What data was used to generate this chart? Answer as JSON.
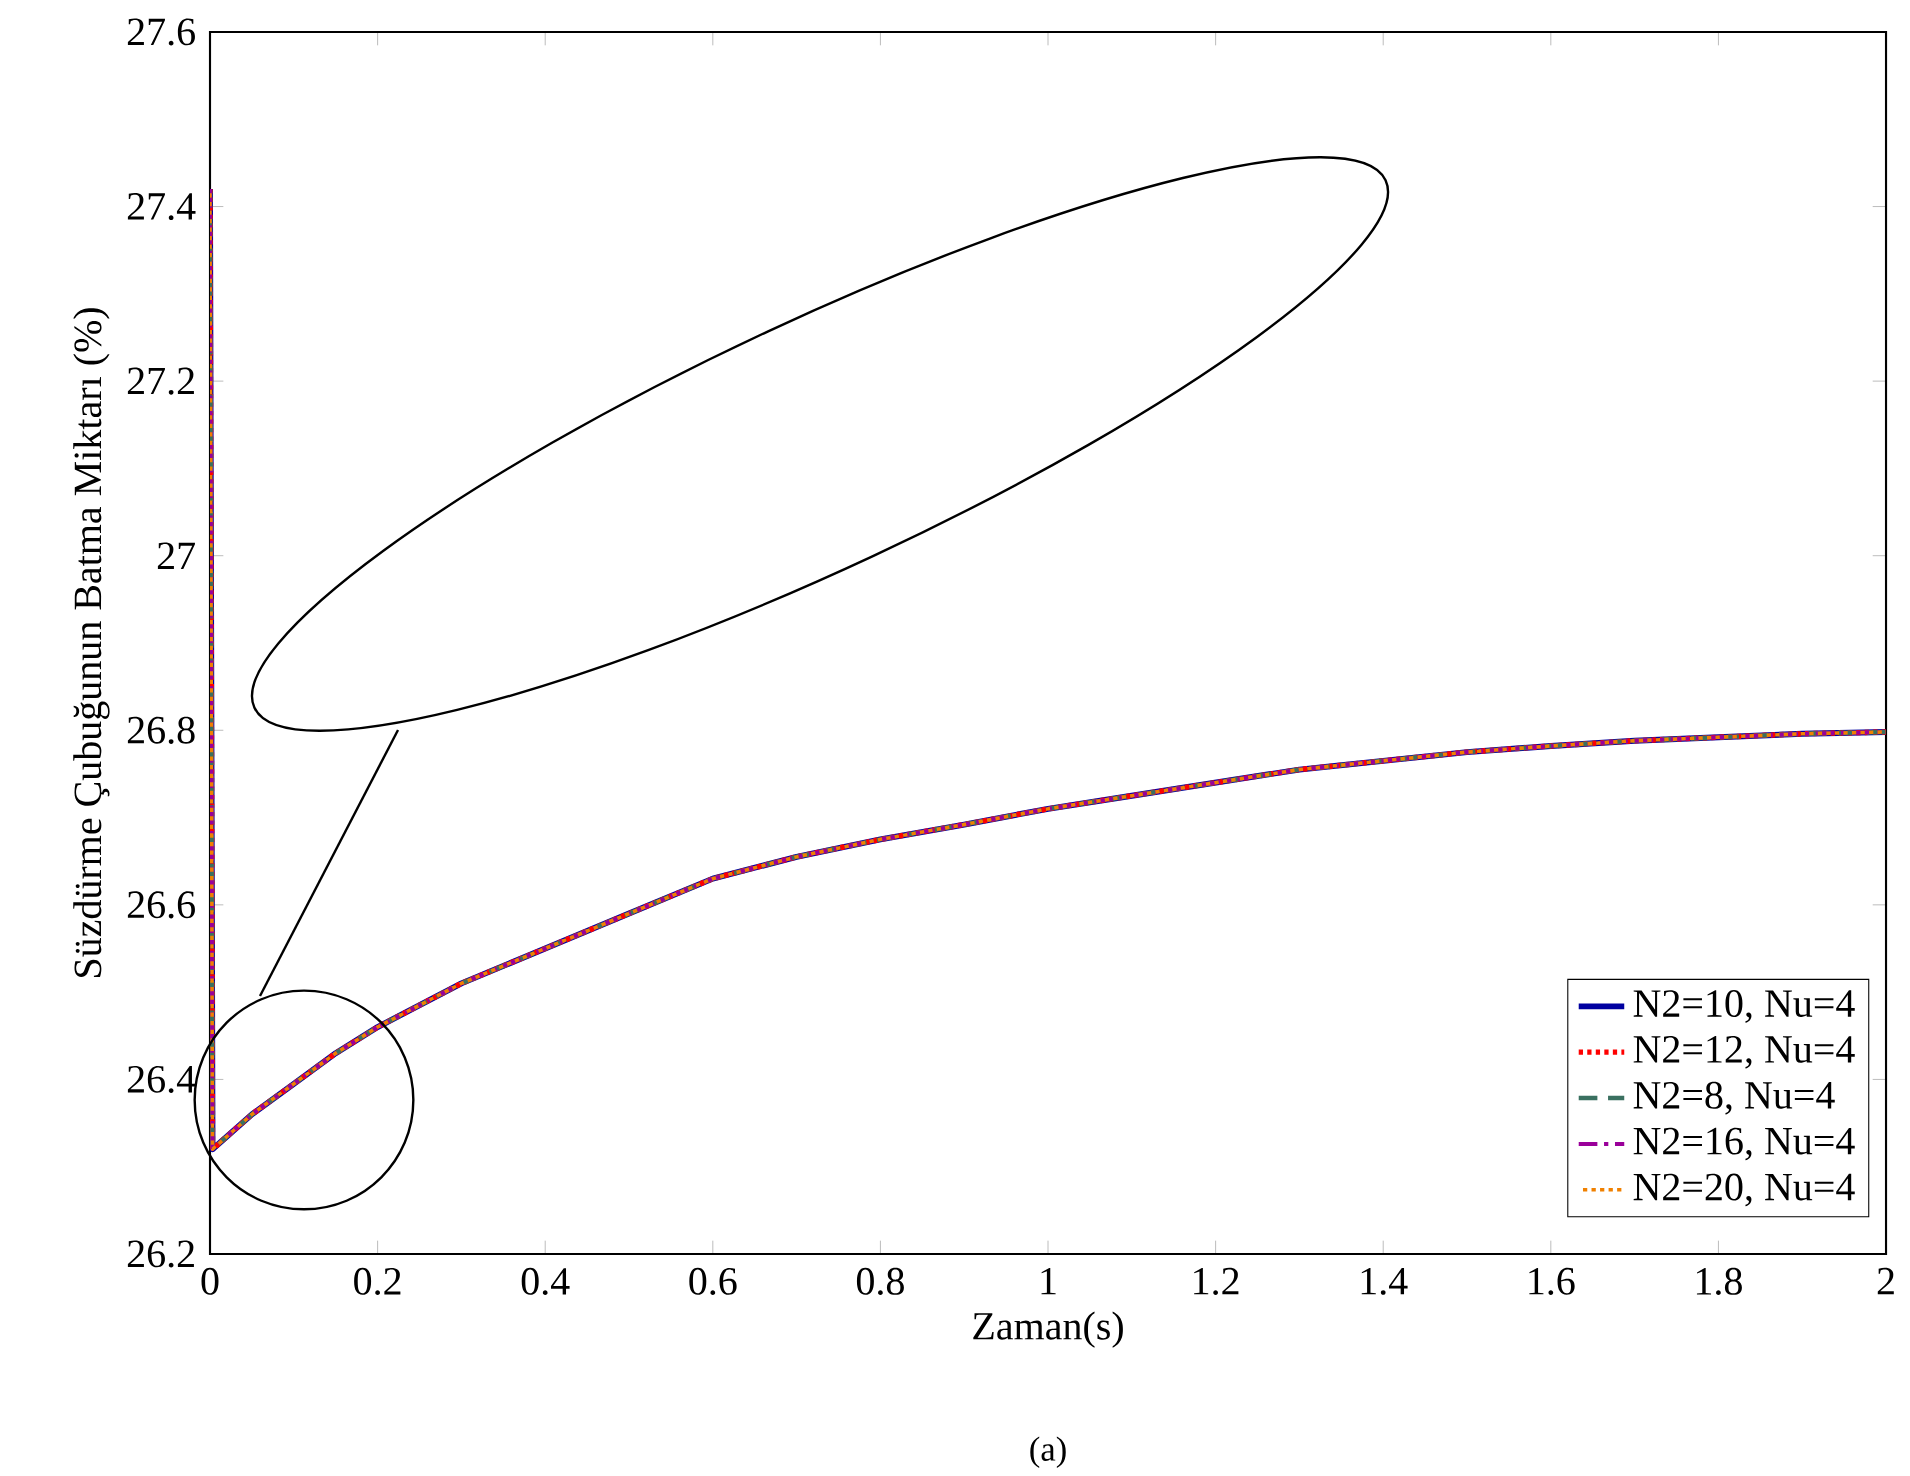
{
  "chart_data": {
    "type": "line",
    "xlabel": "Zaman(s)",
    "ylabel": "Süzdürme Çubuğunun Batma Miktarı (%)",
    "annotations": [
      "(a)"
    ],
    "x": [
      0,
      0.003,
      0.05,
      0.1,
      0.15,
      0.2,
      0.3,
      0.4,
      0.5,
      0.6,
      0.7,
      0.8,
      0.9,
      1.0,
      1.1,
      1.2,
      1.3,
      1.4,
      1.5,
      1.6,
      1.7,
      1.8,
      1.9,
      2.0
    ],
    "series": [
      {
        "name": "N2=10, Nu=4",
        "color": "#0000a0",
        "line_style": "solid",
        "values": [
          27.42,
          26.32,
          26.36,
          26.395,
          26.43,
          26.46,
          26.51,
          26.55,
          26.59,
          26.63,
          26.655,
          26.675,
          26.692,
          26.71,
          26.725,
          26.74,
          26.755,
          26.765,
          26.775,
          26.782,
          26.788,
          26.792,
          26.796,
          26.798
        ]
      },
      {
        "name": "N2=12, Nu=4",
        "color": "#ff0000",
        "line_style": "dotted",
        "values": [
          27.42,
          26.32,
          26.36,
          26.395,
          26.43,
          26.46,
          26.51,
          26.55,
          26.59,
          26.63,
          26.655,
          26.675,
          26.692,
          26.71,
          26.725,
          26.74,
          26.755,
          26.765,
          26.775,
          26.782,
          26.788,
          26.792,
          26.796,
          26.798
        ]
      },
      {
        "name": "N2=8, Nu=4",
        "color": "#3a7060",
        "line_style": "dashed",
        "values": [
          27.42,
          26.32,
          26.36,
          26.395,
          26.43,
          26.46,
          26.51,
          26.55,
          26.59,
          26.63,
          26.655,
          26.675,
          26.692,
          26.71,
          26.725,
          26.74,
          26.755,
          26.765,
          26.775,
          26.782,
          26.788,
          26.792,
          26.796,
          26.798
        ]
      },
      {
        "name": "N2=16, Nu=4",
        "color": "#9a009a",
        "line_style": "dashdot",
        "values": [
          27.42,
          26.32,
          26.36,
          26.395,
          26.43,
          26.46,
          26.51,
          26.55,
          26.59,
          26.63,
          26.655,
          26.675,
          26.692,
          26.71,
          26.725,
          26.74,
          26.755,
          26.765,
          26.775,
          26.782,
          26.788,
          26.792,
          26.796,
          26.798
        ]
      },
      {
        "name": "N2=20, Nu=4",
        "color": "#f08000",
        "line_style": "dotted",
        "values": [
          27.42,
          26.32,
          26.36,
          26.395,
          26.43,
          26.46,
          26.51,
          26.55,
          26.59,
          26.63,
          26.655,
          26.675,
          26.692,
          26.71,
          26.725,
          26.74,
          26.755,
          26.765,
          26.775,
          26.782,
          26.788,
          26.792,
          26.796,
          26.798
        ]
      }
    ],
    "xlim": [
      0,
      2
    ],
    "ylim": [
      26.2,
      27.6
    ],
    "xticks": [
      0,
      0.2,
      0.4,
      0.6,
      0.8,
      1,
      1.2,
      1.4,
      1.6,
      1.8,
      2
    ],
    "yticks": [
      26.2,
      26.4,
      26.6,
      26.8,
      27,
      27.2,
      27.4,
      27.6
    ],
    "grid": false,
    "legend": "bottom right",
    "marker": "none"
  }
}
